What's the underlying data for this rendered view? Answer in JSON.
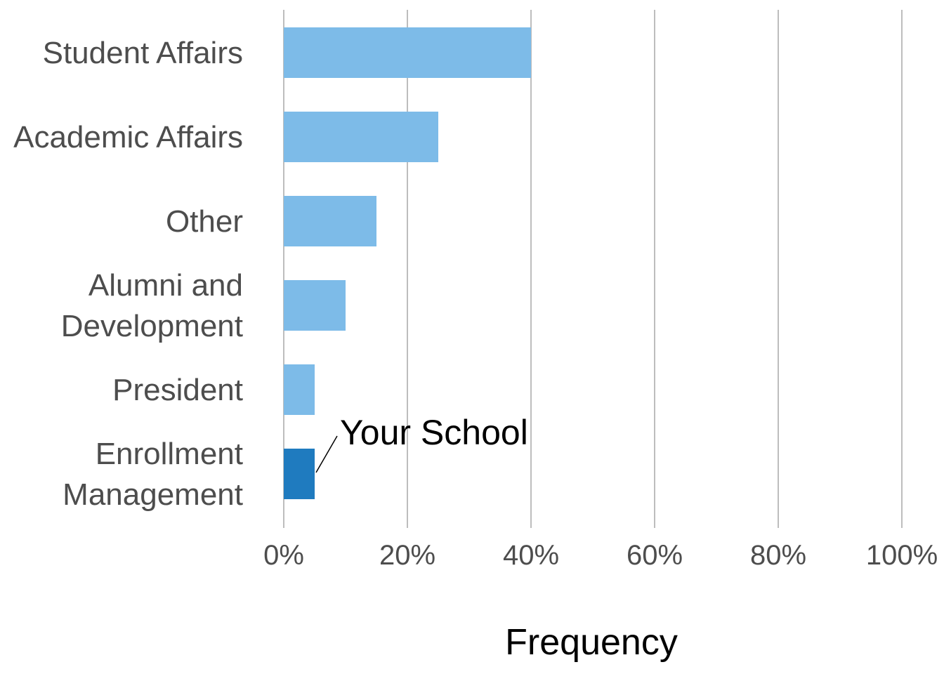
{
  "chart_data": {
    "type": "bar",
    "orientation": "horizontal",
    "categories": [
      "Student Affairs",
      "Academic Affairs",
      "Other",
      "Alumni and Development",
      "President",
      "Enrollment Management"
    ],
    "category_lines": [
      [
        "Student Affairs"
      ],
      [
        "Academic Affairs"
      ],
      [
        "Other"
      ],
      [
        "Alumni and",
        "Development"
      ],
      [
        "President"
      ],
      [
        "Enrollment",
        "Management"
      ]
    ],
    "values": [
      40,
      25,
      15,
      10,
      5,
      5
    ],
    "highlight_index": 5,
    "colors": {
      "bar": "#7dbbe8",
      "highlight": "#1f7bbf"
    },
    "xlabel": "Frequency",
    "xlim": [
      0,
      100
    ],
    "xticks": [
      0,
      20,
      40,
      60,
      80,
      100
    ],
    "xtick_labels": [
      "0%",
      "20%",
      "40%",
      "60%",
      "80%",
      "100%"
    ],
    "grid": "vertical",
    "annotation": {
      "text": "Your School",
      "category_index": 5
    }
  }
}
